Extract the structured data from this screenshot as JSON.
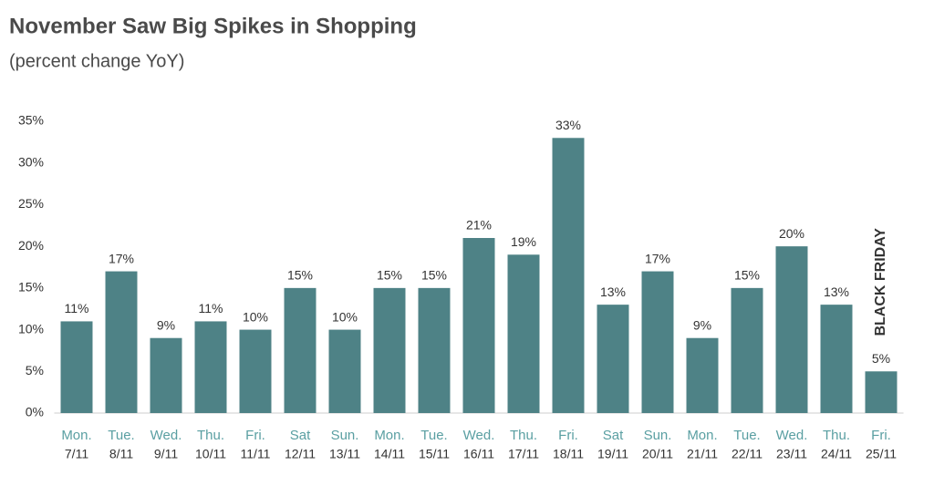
{
  "chart_data": {
    "type": "bar",
    "title": "November Saw Big Spikes in Shopping",
    "subtitle": "(percent change YoY)",
    "annotation": "BLACK FRIDAY",
    "categories": [
      {
        "day": "Mon.",
        "date": "7/11"
      },
      {
        "day": "Tue.",
        "date": "8/11"
      },
      {
        "day": "Wed.",
        "date": "9/11"
      },
      {
        "day": "Thu.",
        "date": "10/11"
      },
      {
        "day": "Fri.",
        "date": "11/11"
      },
      {
        "day": "Sat",
        "date": "12/11"
      },
      {
        "day": "Sun.",
        "date": "13/11"
      },
      {
        "day": "Mon.",
        "date": "14/11"
      },
      {
        "day": "Tue.",
        "date": "15/11"
      },
      {
        "day": "Wed.",
        "date": "16/11"
      },
      {
        "day": "Thu.",
        "date": "17/11"
      },
      {
        "day": "Fri.",
        "date": "18/11"
      },
      {
        "day": "Sat",
        "date": "19/11"
      },
      {
        "day": "Sun.",
        "date": "20/11"
      },
      {
        "day": "Mon.",
        "date": "21/11"
      },
      {
        "day": "Tue.",
        "date": "22/11"
      },
      {
        "day": "Wed.",
        "date": "23/11"
      },
      {
        "day": "Thu.",
        "date": "24/11"
      },
      {
        "day": "Fri.",
        "date": "25/11"
      }
    ],
    "values": [
      11,
      17,
      9,
      11,
      10,
      15,
      10,
      15,
      15,
      21,
      19,
      33,
      13,
      17,
      9,
      15,
      20,
      13,
      5
    ],
    "value_labels": [
      "11%",
      "17%",
      "9%",
      "11%",
      "10%",
      "15%",
      "10%",
      "15%",
      "15%",
      "21%",
      "19%",
      "33%",
      "13%",
      "17%",
      "9%",
      "15%",
      "20%",
      "13%",
      "5%"
    ],
    "color": "#4e8286",
    "ylim": [
      0,
      35
    ],
    "yticks": [
      {
        "value": 0,
        "label": "0%"
      },
      {
        "value": 5,
        "label": "5%"
      },
      {
        "value": 10,
        "label": "10%"
      },
      {
        "value": 15,
        "label": "15%"
      },
      {
        "value": 20,
        "label": "20%"
      },
      {
        "value": 25,
        "label": "25%"
      },
      {
        "value": 30,
        "label": "30%"
      },
      {
        "value": 35,
        "label": "35%"
      }
    ],
    "grid": false
  }
}
